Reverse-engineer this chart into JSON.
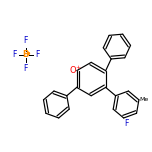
{
  "bg_color": "#ffffff",
  "line_color": "#000000",
  "o_color": "#ff0000",
  "b_color": "#ff8c00",
  "f_color": "#0000cc",
  "lw": 0.85,
  "dbo": 0.018,
  "figsize": [
    1.52,
    1.52
  ],
  "dpi": 100,
  "xlim": [
    0.0,
    1.0
  ],
  "ylim": [
    0.0,
    1.0
  ]
}
